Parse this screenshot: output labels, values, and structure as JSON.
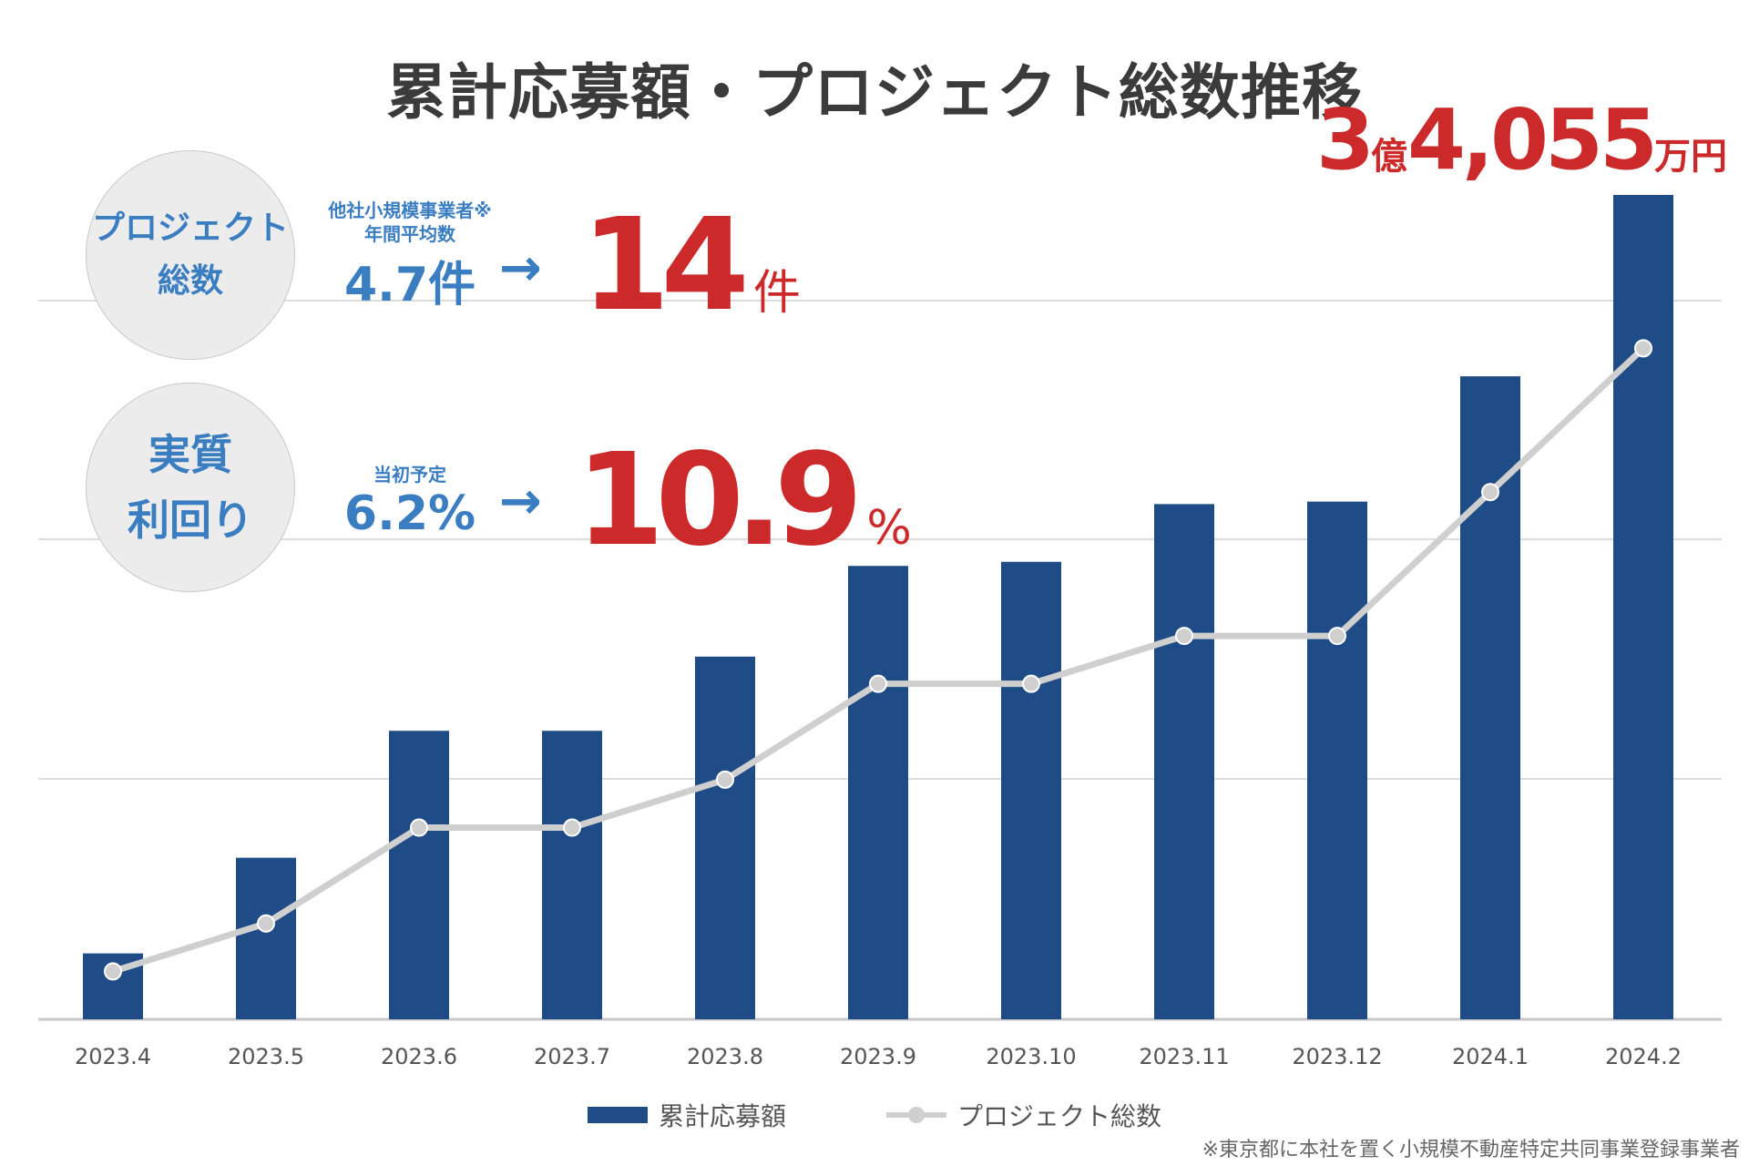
{
  "title": "累計応募額・プロジェクト総数推移",
  "total": {
    "oku": "3",
    "oku_unit": "億",
    "man": "4,055",
    "man_unit": "万円"
  },
  "stat_projects": {
    "circle_label_line1": "プロジェクト",
    "circle_label_line2": "総数",
    "note_line1": "他社小規模事業者※",
    "note_line2": "年間平均数",
    "compare_value": "4.7件",
    "arrow": "→",
    "value": "14",
    "unit": "件"
  },
  "stat_yield": {
    "circle_label_line1": "実質",
    "circle_label_line2": "利回り",
    "note": "当初予定",
    "compare_value": "6.2%",
    "arrow": "→",
    "value": "10.9",
    "unit": "%"
  },
  "colors": {
    "bar": "#1f4c86",
    "line": "#cfcfcf",
    "accent_red": "#cc2a2a",
    "accent_blue": "#3a7dc0"
  },
  "chart_data": {
    "type": "bar",
    "title": "累計応募額・プロジェクト総数推移",
    "categories": [
      "2023.4",
      "2023.5",
      "2023.6",
      "2023.7",
      "2023.8",
      "2023.9",
      "2023.10",
      "2023.11",
      "2023.12",
      "2024.1",
      "2024.2"
    ],
    "series": [
      {
        "name": "累計応募額",
        "type": "bar",
        "values": [
          0.08,
          0.196,
          0.35,
          0.35,
          0.44,
          0.55,
          0.555,
          0.625,
          0.628,
          0.78,
          1.0
        ]
      },
      {
        "name": "プロジェクト総数",
        "type": "line",
        "values": [
          1,
          2,
          4,
          4,
          5,
          7,
          7,
          8,
          8,
          11,
          14
        ]
      }
    ],
    "xlabel": "",
    "ylabel": "",
    "ylim_bar": [
      0,
      1.0
    ],
    "ylim_line": [
      0,
      17.2
    ],
    "grid": true,
    "legend": "bottom-center"
  },
  "legend": {
    "bar_label": "累計応募額",
    "line_label": "プロジェクト総数"
  },
  "footnote": "※東京都に本社を置く小規模不動産特定共同事業登録事業者"
}
